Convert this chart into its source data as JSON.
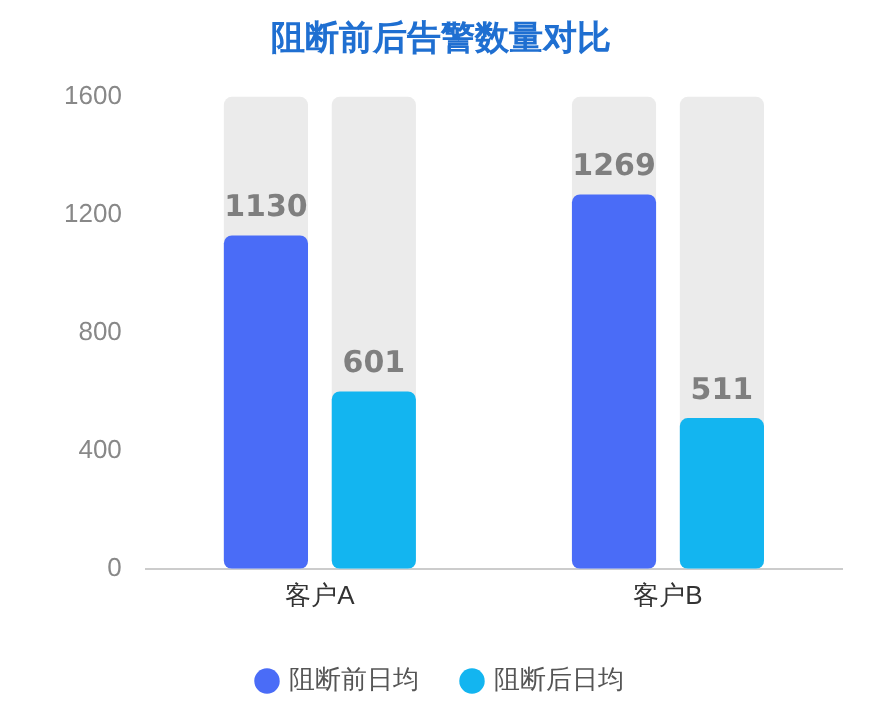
{
  "chart_data": {
    "type": "bar",
    "title": "阻断前后告警数量对比",
    "categories": [
      "客户A",
      "客户B"
    ],
    "series": [
      {
        "name": "阻断前日均",
        "color": "#4a6cf7",
        "values": [
          1130,
          1269
        ]
      },
      {
        "name": "阻断后日均",
        "color": "#13b5f0",
        "values": [
          601,
          511
        ]
      }
    ],
    "ylim": [
      0,
      1600
    ],
    "yticks": [
      0,
      400,
      800,
      1200,
      1600
    ],
    "grid": false,
    "legend": "bottom",
    "data_labels": true
  }
}
